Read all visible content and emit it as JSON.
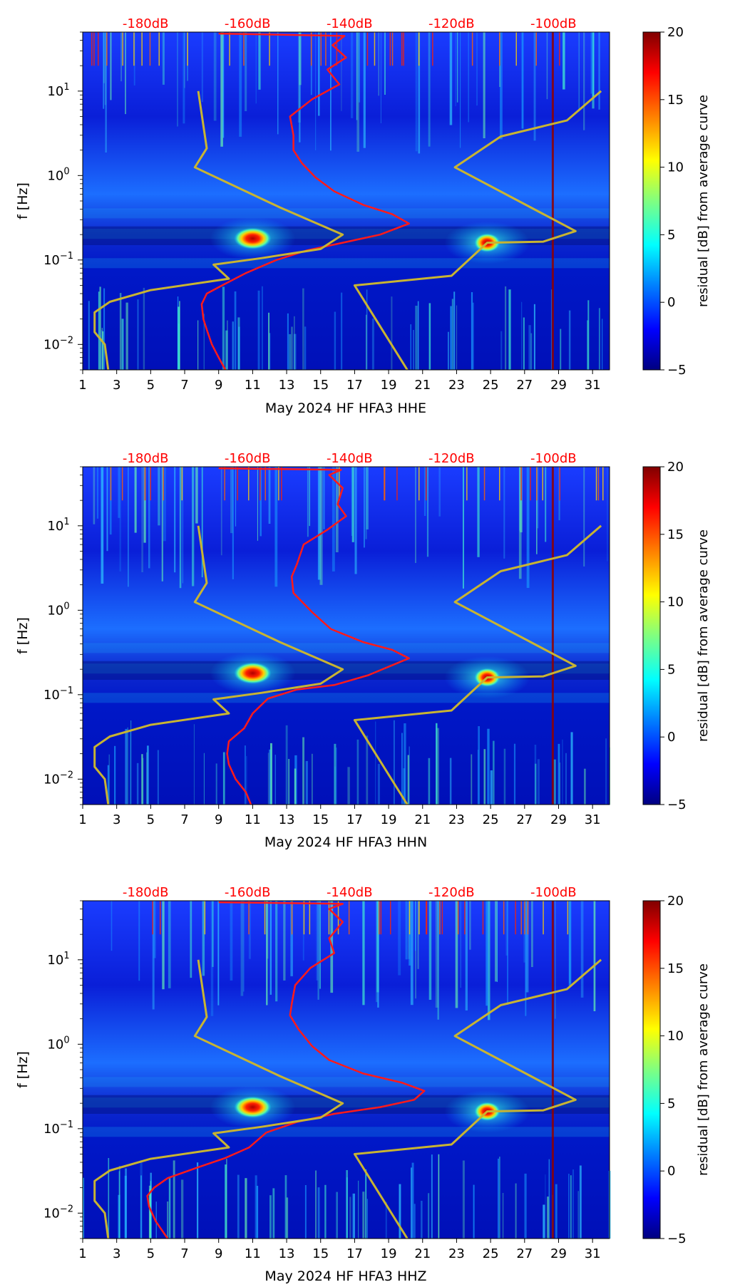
{
  "colors": {
    "noise_curve": "#ff1a1a",
    "model_curve": "#c8b432",
    "db_label": "#ff0000",
    "colormap": [
      "#000080",
      "#0000ff",
      "#0080ff",
      "#00ffff",
      "#80ff80",
      "#ffff00",
      "#ff8000",
      "#ff0000",
      "#800000"
    ]
  },
  "chart_data": [
    {
      "type": "heatmap",
      "title": "",
      "xlabel": "May 2024 HF HFA3  HHE",
      "ylabel": "f [Hz]",
      "x_range": [
        1,
        32
      ],
      "y_range": [
        0.005,
        50
      ],
      "y_scale": "log",
      "x_ticks": [
        "1",
        "3",
        "5",
        "7",
        "9",
        "11",
        "13",
        "15",
        "17",
        "19",
        "21",
        "23",
        "25",
        "27",
        "29",
        "31"
      ],
      "y_ticks": [
        {
          "base": "10",
          "exp": "1"
        },
        {
          "base": "10",
          "exp": "0"
        },
        {
          "base": "10",
          "exp": "−1"
        },
        {
          "base": "10",
          "exp": "−2"
        }
      ],
      "db_labels": [
        "-180dB",
        "-160dB",
        "-140dB",
        "-120dB",
        "-100dB"
      ],
      "colorbar": {
        "label": "residual [dB] from average curve",
        "range": [
          -5,
          20
        ],
        "ticks": [
          "20",
          "15",
          "10",
          "5",
          "0",
          "−5"
        ]
      },
      "series": [
        {
          "name": "average noise curve",
          "points": [
            [
              9.4,
              0.005
            ],
            [
              9.0,
              0.007
            ],
            [
              8.6,
              0.01
            ],
            [
              8.3,
              0.015
            ],
            [
              8.1,
              0.02
            ],
            [
              8.0,
              0.03
            ],
            [
              8.3,
              0.04
            ],
            [
              9.2,
              0.05
            ],
            [
              10.6,
              0.07
            ],
            [
              12.4,
              0.1
            ],
            [
              14.2,
              0.13
            ],
            [
              16.3,
              0.16
            ],
            [
              18.5,
              0.2
            ],
            [
              20.2,
              0.27
            ],
            [
              19.2,
              0.35
            ],
            [
              17.5,
              0.45
            ],
            [
              15.8,
              0.65
            ],
            [
              14.7,
              0.95
            ],
            [
              13.9,
              1.4
            ],
            [
              13.4,
              2.0
            ],
            [
              13.4,
              3.0
            ],
            [
              13.2,
              5.0
            ],
            [
              14.5,
              8.0
            ],
            [
              16.1,
              12.0
            ],
            [
              15.4,
              18.0
            ],
            [
              16.5,
              25.0
            ],
            [
              15.7,
              35.0
            ],
            [
              16.4,
              45.0
            ],
            [
              9.0,
              48.0
            ]
          ]
        },
        {
          "name": "noise model",
          "points": [
            [
              2.5,
              0.005
            ],
            [
              2.3,
              0.01
            ],
            [
              1.7,
              0.014
            ],
            [
              1.7,
              0.024
            ],
            [
              2.6,
              0.032
            ],
            [
              5.0,
              0.044
            ],
            [
              9.6,
              0.06
            ],
            [
              8.7,
              0.088
            ],
            [
              11.5,
              0.105
            ],
            [
              15.0,
              0.135
            ],
            [
              16.3,
              0.2
            ],
            [
              12.6,
              0.42
            ],
            [
              7.6,
              1.25
            ],
            [
              8.3,
              2.1
            ],
            [
              7.8,
              10.0
            ]
          ]
        },
        {
          "name": "noise model",
          "points": [
            [
              20.1,
              0.005
            ],
            [
              17.0,
              0.05
            ],
            [
              22.7,
              0.065
            ],
            [
              24.8,
              0.16
            ],
            [
              28.1,
              0.165
            ],
            [
              30.0,
              0.22
            ],
            [
              22.9,
              1.25
            ],
            [
              25.6,
              2.9
            ],
            [
              29.5,
              4.5
            ],
            [
              31.5,
              10.0
            ]
          ]
        }
      ],
      "hot_spots": [
        {
          "day": 11.0,
          "freq": 0.18,
          "level": 20
        },
        {
          "day": 24.8,
          "freq": 0.16,
          "level": 20
        }
      ]
    },
    {
      "type": "heatmap",
      "title": "",
      "xlabel": "May 2024 HF HFA3  HHN",
      "ylabel": "f [Hz]",
      "x_range": [
        1,
        32
      ],
      "y_range": [
        0.005,
        50
      ],
      "y_scale": "log",
      "x_ticks": [
        "1",
        "3",
        "5",
        "7",
        "9",
        "11",
        "13",
        "15",
        "17",
        "19",
        "21",
        "23",
        "25",
        "27",
        "29",
        "31"
      ],
      "y_ticks": [
        {
          "base": "10",
          "exp": "1"
        },
        {
          "base": "10",
          "exp": "0"
        },
        {
          "base": "10",
          "exp": "−1"
        },
        {
          "base": "10",
          "exp": "−2"
        }
      ],
      "db_labels": [
        "-180dB",
        "-160dB",
        "-140dB",
        "-120dB",
        "-100dB"
      ],
      "colorbar": {
        "label": "residual [dB] from average curve",
        "range": [
          -5,
          20
        ],
        "ticks": [
          "20",
          "15",
          "10",
          "5",
          "0",
          "−5"
        ]
      },
      "series": [
        {
          "name": "average noise curve",
          "points": [
            [
              10.9,
              0.005
            ],
            [
              10.6,
              0.007
            ],
            [
              10.0,
              0.01
            ],
            [
              9.6,
              0.015
            ],
            [
              9.5,
              0.02
            ],
            [
              9.6,
              0.028
            ],
            [
              10.5,
              0.04
            ],
            [
              11.0,
              0.06
            ],
            [
              11.9,
              0.09
            ],
            [
              13.6,
              0.115
            ],
            [
              15.8,
              0.13
            ],
            [
              17.8,
              0.17
            ],
            [
              20.2,
              0.27
            ],
            [
              19.2,
              0.34
            ],
            [
              17.5,
              0.42
            ],
            [
              15.6,
              0.6
            ],
            [
              14.5,
              0.95
            ],
            [
              13.4,
              1.6
            ],
            [
              13.3,
              2.5
            ],
            [
              13.6,
              3.5
            ],
            [
              14.0,
              6.0
            ],
            [
              15.4,
              9.0
            ],
            [
              16.5,
              13.0
            ],
            [
              16.0,
              18.0
            ],
            [
              16.3,
              28.0
            ],
            [
              15.5,
              40.0
            ],
            [
              16.2,
              46.0
            ],
            [
              9.0,
              48.0
            ]
          ]
        },
        {
          "name": "noise model",
          "points": [
            [
              2.5,
              0.005
            ],
            [
              2.3,
              0.01
            ],
            [
              1.7,
              0.014
            ],
            [
              1.7,
              0.024
            ],
            [
              2.6,
              0.032
            ],
            [
              5.0,
              0.044
            ],
            [
              9.6,
              0.06
            ],
            [
              8.7,
              0.088
            ],
            [
              11.5,
              0.105
            ],
            [
              15.0,
              0.135
            ],
            [
              16.3,
              0.2
            ],
            [
              12.6,
              0.42
            ],
            [
              7.6,
              1.25
            ],
            [
              8.3,
              2.1
            ],
            [
              7.8,
              10.0
            ]
          ]
        },
        {
          "name": "noise model",
          "points": [
            [
              20.1,
              0.005
            ],
            [
              17.0,
              0.05
            ],
            [
              22.7,
              0.065
            ],
            [
              24.8,
              0.16
            ],
            [
              28.1,
              0.165
            ],
            [
              30.0,
              0.22
            ],
            [
              22.9,
              1.25
            ],
            [
              25.6,
              2.9
            ],
            [
              29.5,
              4.5
            ],
            [
              31.5,
              10.0
            ]
          ]
        }
      ],
      "hot_spots": [
        {
          "day": 11.0,
          "freq": 0.18,
          "level": 20
        },
        {
          "day": 24.8,
          "freq": 0.16,
          "level": 20
        }
      ]
    },
    {
      "type": "heatmap",
      "title": "",
      "xlabel": "May 2024 HF HFA3  HHZ",
      "ylabel": "f [Hz]",
      "x_range": [
        1,
        32
      ],
      "y_range": [
        0.005,
        50
      ],
      "y_scale": "log",
      "x_ticks": [
        "1",
        "3",
        "5",
        "7",
        "9",
        "11",
        "13",
        "15",
        "17",
        "19",
        "21",
        "23",
        "25",
        "27",
        "29",
        "31"
      ],
      "y_ticks": [
        {
          "base": "10",
          "exp": "1"
        },
        {
          "base": "10",
          "exp": "0"
        },
        {
          "base": "10",
          "exp": "−1"
        },
        {
          "base": "10",
          "exp": "−2"
        }
      ],
      "db_labels": [
        "-180dB",
        "-160dB",
        "-140dB",
        "-120dB",
        "-100dB"
      ],
      "colorbar": {
        "label": "residual [dB] from average curve",
        "range": [
          -5,
          20
        ],
        "ticks": [
          "20",
          "15",
          "10",
          "5",
          "0",
          "−5"
        ]
      },
      "series": [
        {
          "name": "average noise curve",
          "points": [
            [
              6.0,
              0.005
            ],
            [
              5.3,
              0.008
            ],
            [
              4.9,
              0.012
            ],
            [
              4.8,
              0.016
            ],
            [
              5.2,
              0.02
            ],
            [
              6.0,
              0.026
            ],
            [
              7.8,
              0.035
            ],
            [
              9.4,
              0.045
            ],
            [
              10.8,
              0.06
            ],
            [
              11.8,
              0.09
            ],
            [
              13.6,
              0.12
            ],
            [
              15.8,
              0.15
            ],
            [
              18.5,
              0.18
            ],
            [
              20.5,
              0.22
            ],
            [
              21.1,
              0.28
            ],
            [
              19.8,
              0.35
            ],
            [
              17.5,
              0.45
            ],
            [
              15.5,
              0.65
            ],
            [
              14.5,
              0.95
            ],
            [
              13.7,
              1.5
            ],
            [
              13.2,
              2.2
            ],
            [
              13.3,
              3.0
            ],
            [
              13.5,
              5.0
            ],
            [
              14.4,
              8.0
            ],
            [
              15.8,
              12.0
            ],
            [
              15.5,
              18.0
            ],
            [
              16.3,
              28.0
            ],
            [
              15.5,
              40.0
            ],
            [
              16.3,
              46.0
            ],
            [
              9.0,
              48.0
            ]
          ]
        },
        {
          "name": "noise model",
          "points": [
            [
              2.5,
              0.005
            ],
            [
              2.3,
              0.01
            ],
            [
              1.7,
              0.014
            ],
            [
              1.7,
              0.024
            ],
            [
              2.6,
              0.032
            ],
            [
              5.0,
              0.044
            ],
            [
              9.6,
              0.06
            ],
            [
              8.7,
              0.088
            ],
            [
              11.5,
              0.105
            ],
            [
              15.0,
              0.135
            ],
            [
              16.3,
              0.2
            ],
            [
              12.6,
              0.42
            ],
            [
              7.6,
              1.25
            ],
            [
              8.3,
              2.1
            ],
            [
              7.8,
              10.0
            ]
          ]
        },
        {
          "name": "noise model",
          "points": [
            [
              20.1,
              0.005
            ],
            [
              17.0,
              0.05
            ],
            [
              22.7,
              0.065
            ],
            [
              24.8,
              0.16
            ],
            [
              28.1,
              0.165
            ],
            [
              30.0,
              0.22
            ],
            [
              22.9,
              1.25
            ],
            [
              25.6,
              2.9
            ],
            [
              29.5,
              4.5
            ],
            [
              31.5,
              10.0
            ]
          ]
        }
      ],
      "hot_spots": [
        {
          "day": 11.0,
          "freq": 0.18,
          "level": 20
        },
        {
          "day": 24.8,
          "freq": 0.16,
          "level": 20
        }
      ]
    }
  ]
}
